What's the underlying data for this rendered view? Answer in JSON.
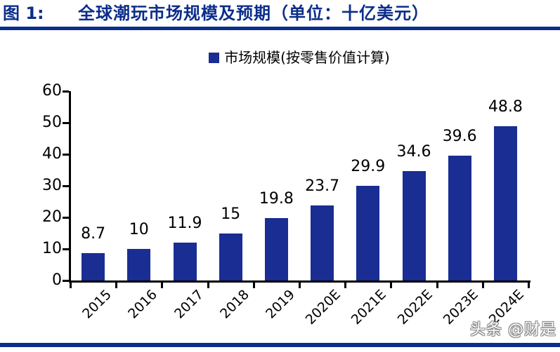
{
  "header": {
    "figure_label": "图 1:",
    "title": "全球潮玩市场规模及预期（单位：十亿美元）"
  },
  "legend": {
    "label": "市场规模(按零售价值计算)"
  },
  "watermark": "头条 @财是",
  "colors": {
    "navy": "#0b2d8b",
    "bar_fill": "#192d93",
    "text": "#000000"
  },
  "chart_data": {
    "type": "bar",
    "title": "全球潮玩市场规模及预期",
    "unit": "十亿美元",
    "categories": [
      "2015",
      "2016",
      "2017",
      "2018",
      "2019",
      "2020E",
      "2021E",
      "2022E",
      "2023E",
      "2024E"
    ],
    "series": [
      {
        "name": "市场规模(按零售价值计算)",
        "values": [
          8.7,
          10,
          11.9,
          15,
          19.8,
          23.7,
          29.9,
          34.6,
          39.6,
          48.8
        ]
      }
    ],
    "xlabel": "",
    "ylabel": "",
    "ylim": [
      0,
      60
    ],
    "yticks": [
      0,
      10,
      20,
      30,
      40,
      50,
      60
    ],
    "grid": false,
    "legend_position": "top-center",
    "data_labels": true,
    "bar_color": "#192d93"
  }
}
